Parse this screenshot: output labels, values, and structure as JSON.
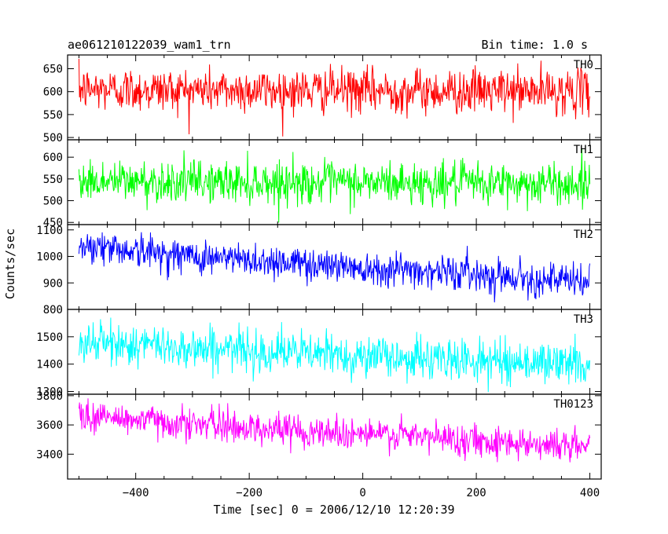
{
  "header": {
    "title": "ae061210122039_wam1_trn",
    "bin_time": "Bin time: 1.0 s"
  },
  "chart_data": {
    "type": "line",
    "title": "ae061210122039_wam1_trn",
    "subtitle": "Bin time: 1.0 s",
    "xlabel": "Time [sec] 0 = 2006/12/10 12:20:39",
    "ylabel": "Counts/sec",
    "xlim": [
      -520,
      420
    ],
    "x_range": [
      -500,
      400
    ],
    "x_step": 1,
    "x_ticks": [
      -400,
      -200,
      0,
      200,
      400
    ],
    "x_tick_labels": [
      "−400",
      "−200",
      "0",
      "200",
      "400"
    ],
    "grid": false,
    "panels": [
      {
        "name": "TH0",
        "color": "#ff0000",
        "ylim": [
          495,
          680
        ],
        "y_ticks": [
          500,
          550,
          600,
          650
        ],
        "y_tick_labels": [
          "500",
          "550",
          "600",
          "650"
        ],
        "trend": [
          [
            -500,
            605
          ],
          [
            400,
            600
          ]
        ],
        "noise_sd": 24
      },
      {
        "name": "TH1",
        "color": "#00ff00",
        "ylim": [
          445,
          640
        ],
        "y_ticks": [
          450,
          500,
          550,
          600
        ],
        "y_tick_labels": [
          "450",
          "500",
          "550",
          "600"
        ],
        "trend": [
          [
            -500,
            545
          ],
          [
            400,
            538
          ]
        ],
        "noise_sd": 24
      },
      {
        "name": "TH2",
        "color": "#0000ff",
        "ylim": [
          800,
          1120
        ],
        "y_ticks": [
          800,
          900,
          1000,
          1100
        ],
        "y_tick_labels": [
          "800",
          "900",
          "1000",
          "1100"
        ],
        "trend": [
          [
            -500,
            1045
          ],
          [
            -300,
            1000
          ],
          [
            0,
            960
          ],
          [
            200,
            935
          ],
          [
            400,
            900
          ]
        ],
        "noise_sd": 32
      },
      {
        "name": "TH3",
        "color": "#00ffff",
        "ylim": [
          1290,
          1600
        ],
        "y_ticks": [
          1300,
          1400,
          1500
        ],
        "y_tick_labels": [
          "1300",
          "1400",
          "1500"
        ],
        "trend": [
          [
            -500,
            1480
          ],
          [
            -200,
            1450
          ],
          [
            100,
            1420
          ],
          [
            400,
            1400
          ]
        ],
        "noise_sd": 38
      },
      {
        "name": "TH0123",
        "color": "#ff00ff",
        "ylim": [
          3230,
          3810
        ],
        "y_ticks": [
          3400,
          3600,
          3800
        ],
        "y_tick_labels": [
          "3400",
          "3600",
          "3800"
        ],
        "trend": [
          [
            -500,
            3665
          ],
          [
            -200,
            3580
          ],
          [
            100,
            3520
          ],
          [
            400,
            3450
          ]
        ],
        "noise_sd": 55
      }
    ]
  }
}
